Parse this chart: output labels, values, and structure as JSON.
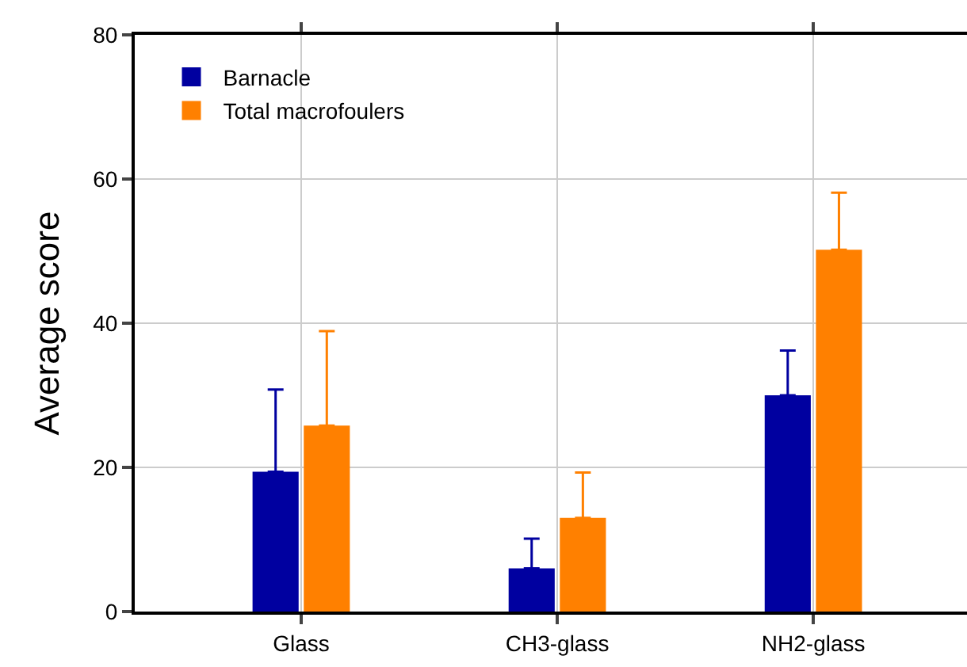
{
  "chart_data": {
    "type": "bar",
    "ylabel": "Average score",
    "categories": [
      "Glass",
      "CH3-glass",
      "NH2-glass"
    ],
    "series": [
      {
        "name": "Barnacle",
        "color": "#0000a0",
        "values": [
          19.4,
          6.0,
          30.0
        ],
        "errors": [
          [
            19.4,
            30.8
          ],
          [
            6.0,
            10.1
          ],
          [
            30.0,
            36.2
          ]
        ]
      },
      {
        "name": "Total macrofoulers",
        "color": "#ff8000",
        "values": [
          25.8,
          13.0,
          50.2
        ],
        "errors": [
          [
            25.8,
            38.9
          ],
          [
            13.0,
            19.3
          ],
          [
            50.2,
            58.1
          ]
        ]
      }
    ],
    "ylim": [
      0,
      80
    ],
    "yticks": [
      0,
      20,
      40,
      60,
      80
    ],
    "grid": true,
    "legend": "top left"
  }
}
